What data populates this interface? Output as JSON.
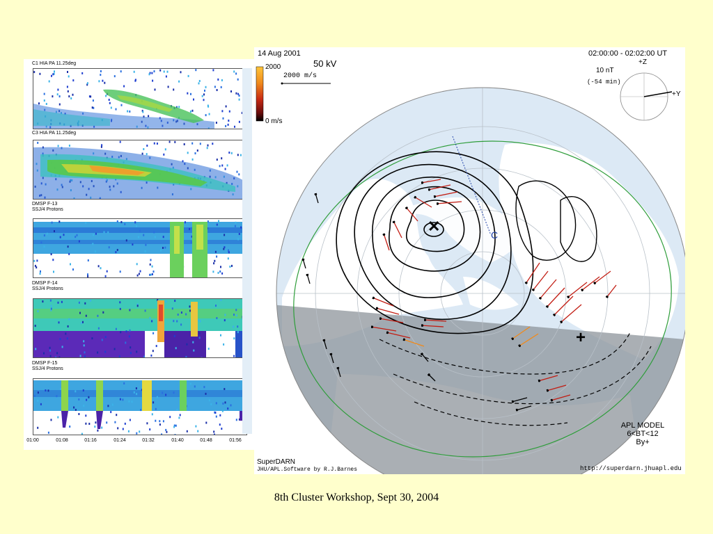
{
  "left_panel": {
    "panels": [
      {
        "label_lines": [
          "C1 HIA PA 11.25deg"
        ]
      },
      {
        "label_lines": [
          "C3 HIA PA 11.25deg"
        ]
      },
      {
        "label_lines": [
          "DMSP F-13",
          "SSJ/4 Protons"
        ]
      },
      {
        "label_lines": [
          "DMSP F-14",
          "SSJ/4 Protons"
        ]
      },
      {
        "label_lines": [
          "DMSP F-15",
          "SSJ/4 Protons"
        ]
      }
    ],
    "time_ticks": [
      "01:00",
      "01:08",
      "01:16",
      "01:24",
      "01:32",
      "01:40",
      "01:48",
      "01:56"
    ]
  },
  "map": {
    "date": "14 Aug 2001",
    "potential": "50 kV",
    "time_range": "02:00:00 - 02:02:00 UT",
    "color_bar": {
      "max_label": "2000",
      "min_label": "0 m/s"
    },
    "velocity_scale": "2000 m/s",
    "imf": {
      "magnitude": "10 nT",
      "delay": "(-54 min)",
      "z_label": "+Z",
      "y_label": "+Y"
    },
    "model": {
      "line1": "APL MODEL",
      "line2": "6<BT<12",
      "line3": "By+"
    },
    "credit": {
      "line1": "SuperDARN",
      "line2": "JHU/APL.Software by R.J.Barnes"
    },
    "url": "http://superdarn.jhuapl.edu",
    "markers": {
      "min": "✕",
      "max": "+"
    },
    "coast_label": "C",
    "colors": {
      "ocean": "#dce9f5",
      "land": "#ffffff",
      "night": "#9aa1a8",
      "boundary": "#2e9d3a"
    }
  },
  "footer": {
    "caption": "8th Cluster Workshop, Sept 30, 2004"
  }
}
